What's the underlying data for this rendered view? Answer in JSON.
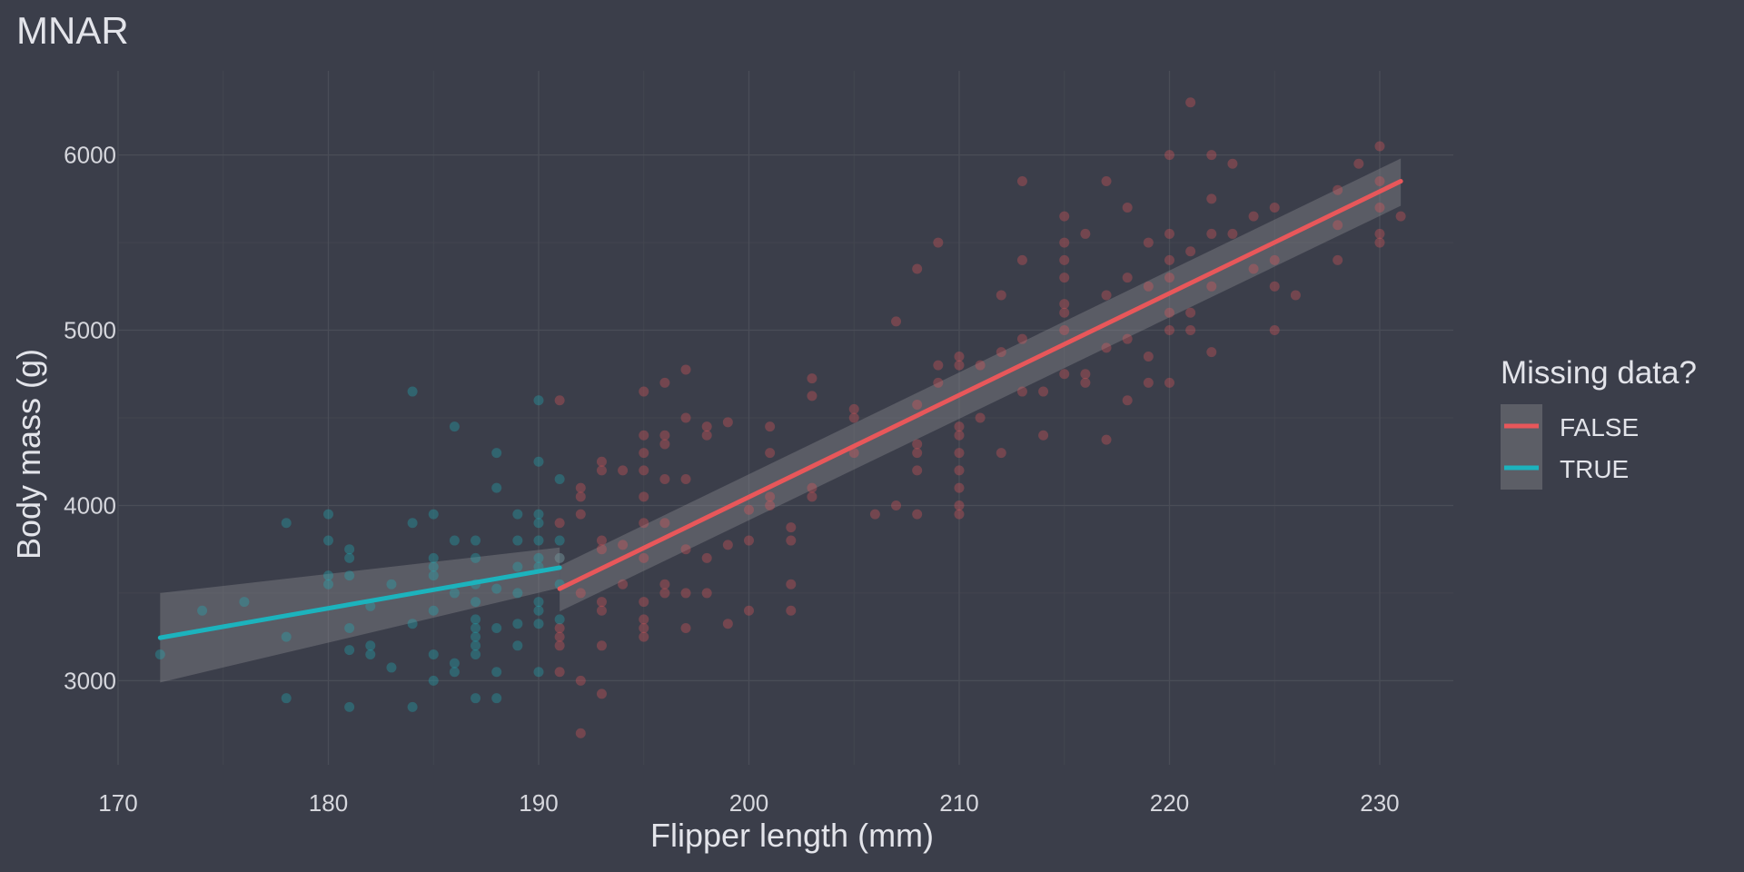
{
  "chart_data": {
    "type": "scatter",
    "title": "MNAR",
    "xlabel": "Flipper length (mm)",
    "ylabel": "Body mass (g)",
    "xlim": [
      170,
      233.5
    ],
    "ylim": [
      2520,
      6480
    ],
    "xticks": [
      170,
      180,
      190,
      200,
      210,
      220,
      230
    ],
    "yticks": [
      3000,
      4000,
      5000,
      6000
    ],
    "grid": true,
    "legend": {
      "title": "Missing data?",
      "position": "right"
    },
    "series": [
      {
        "name": "FALSE",
        "color": "#e8575a",
        "points": [
          [
            191,
            4600
          ],
          [
            191,
            3900
          ],
          [
            191,
            3700
          ],
          [
            191,
            3250
          ],
          [
            191,
            3300
          ],
          [
            191,
            3050
          ],
          [
            191,
            3200
          ],
          [
            192,
            2700
          ],
          [
            192,
            4100
          ],
          [
            192,
            4050
          ],
          [
            192,
            3950
          ],
          [
            192,
            3500
          ],
          [
            192,
            3000
          ],
          [
            193,
            4250
          ],
          [
            193,
            4200
          ],
          [
            193,
            3800
          ],
          [
            193,
            3750
          ],
          [
            193,
            3450
          ],
          [
            193,
            3400
          ],
          [
            193,
            3200
          ],
          [
            193,
            2925
          ],
          [
            194,
            4200
          ],
          [
            194,
            3775
          ],
          [
            194,
            3550
          ],
          [
            195,
            4650
          ],
          [
            195,
            4400
          ],
          [
            195,
            4300
          ],
          [
            195,
            4200
          ],
          [
            195,
            4050
          ],
          [
            195,
            3900
          ],
          [
            195,
            3700
          ],
          [
            195,
            3450
          ],
          [
            195,
            3350
          ],
          [
            195,
            3300
          ],
          [
            195,
            3250
          ],
          [
            196,
            4700
          ],
          [
            196,
            4400
          ],
          [
            196,
            4350
          ],
          [
            196,
            4150
          ],
          [
            196,
            3900
          ],
          [
            196,
            3550
          ],
          [
            196,
            3500
          ],
          [
            197,
            4775
          ],
          [
            197,
            4500
          ],
          [
            197,
            4150
          ],
          [
            197,
            3750
          ],
          [
            197,
            3500
          ],
          [
            197,
            3300
          ],
          [
            198,
            4450
          ],
          [
            198,
            4400
          ],
          [
            198,
            3700
          ],
          [
            198,
            3500
          ],
          [
            199,
            4475
          ],
          [
            199,
            3775
          ],
          [
            199,
            3325
          ],
          [
            200,
            3975
          ],
          [
            200,
            3800
          ],
          [
            200,
            3400
          ],
          [
            201,
            4450
          ],
          [
            201,
            4300
          ],
          [
            201,
            4050
          ],
          [
            201,
            4000
          ],
          [
            202,
            3875
          ],
          [
            202,
            3800
          ],
          [
            202,
            3550
          ],
          [
            202,
            3400
          ],
          [
            203,
            4725
          ],
          [
            203,
            4625
          ],
          [
            203,
            4100
          ],
          [
            203,
            4050
          ],
          [
            205,
            4550
          ],
          [
            205,
            4500
          ],
          [
            205,
            4300
          ],
          [
            206,
            3950
          ],
          [
            207,
            5050
          ],
          [
            207,
            4000
          ],
          [
            208,
            5350
          ],
          [
            208,
            4575
          ],
          [
            208,
            4350
          ],
          [
            208,
            4300
          ],
          [
            208,
            4200
          ],
          [
            208,
            3950
          ],
          [
            209,
            5500
          ],
          [
            209,
            4800
          ],
          [
            209,
            4700
          ],
          [
            210,
            4850
          ],
          [
            210,
            4800
          ],
          [
            210,
            4450
          ],
          [
            210,
            4400
          ],
          [
            210,
            4300
          ],
          [
            210,
            4200
          ],
          [
            210,
            4100
          ],
          [
            210,
            4000
          ],
          [
            210,
            3950
          ],
          [
            211,
            4800
          ],
          [
            211,
            4500
          ],
          [
            212,
            5200
          ],
          [
            212,
            4875
          ],
          [
            212,
            4300
          ],
          [
            213,
            5850
          ],
          [
            213,
            5400
          ],
          [
            213,
            4950
          ],
          [
            213,
            4650
          ],
          [
            214,
            4650
          ],
          [
            214,
            4400
          ],
          [
            215,
            5650
          ],
          [
            215,
            5500
          ],
          [
            215,
            5400
          ],
          [
            215,
            5300
          ],
          [
            215,
            5150
          ],
          [
            215,
            5100
          ],
          [
            215,
            5000
          ],
          [
            215,
            4750
          ],
          [
            216,
            5550
          ],
          [
            216,
            4750
          ],
          [
            216,
            4700
          ],
          [
            217,
            5850
          ],
          [
            217,
            5200
          ],
          [
            217,
            4900
          ],
          [
            217,
            4375
          ],
          [
            218,
            5700
          ],
          [
            218,
            5300
          ],
          [
            218,
            4950
          ],
          [
            218,
            4600
          ],
          [
            219,
            5500
          ],
          [
            219,
            5250
          ],
          [
            219,
            4850
          ],
          [
            219,
            4700
          ],
          [
            220,
            6000
          ],
          [
            220,
            5550
          ],
          [
            220,
            5400
          ],
          [
            220,
            5300
          ],
          [
            220,
            5100
          ],
          [
            220,
            5000
          ],
          [
            220,
            4700
          ],
          [
            221,
            6300
          ],
          [
            221,
            5450
          ],
          [
            221,
            5100
          ],
          [
            221,
            5000
          ],
          [
            222,
            6000
          ],
          [
            222,
            5750
          ],
          [
            222,
            5550
          ],
          [
            222,
            5250
          ],
          [
            222,
            4875
          ],
          [
            223,
            5950
          ],
          [
            223,
            5550
          ],
          [
            224,
            5650
          ],
          [
            224,
            5350
          ],
          [
            225,
            5700
          ],
          [
            225,
            5400
          ],
          [
            225,
            5250
          ],
          [
            225,
            5000
          ],
          [
            226,
            5200
          ],
          [
            228,
            5800
          ],
          [
            228,
            5600
          ],
          [
            228,
            5400
          ],
          [
            229,
            5950
          ],
          [
            230,
            6050
          ],
          [
            230,
            5850
          ],
          [
            230,
            5700
          ],
          [
            230,
            5550
          ],
          [
            230,
            5500
          ],
          [
            231,
            5650
          ]
        ],
        "fit": {
          "x": [
            191,
            231
          ],
          "y": [
            3525,
            5850
          ],
          "ci_low": [
            3395,
            5710
          ],
          "ci_high": [
            3655,
            5980
          ]
        }
      },
      {
        "name": "TRUE",
        "color": "#1cb3bd",
        "points": [
          [
            172,
            3150
          ],
          [
            174,
            3400
          ],
          [
            176,
            3450
          ],
          [
            178,
            3900
          ],
          [
            178,
            3250
          ],
          [
            178,
            2900
          ],
          [
            180,
            3950
          ],
          [
            180,
            3800
          ],
          [
            180,
            3600
          ],
          [
            180,
            3550
          ],
          [
            181,
            3750
          ],
          [
            181,
            3700
          ],
          [
            181,
            3600
          ],
          [
            181,
            3300
          ],
          [
            181,
            3175
          ],
          [
            181,
            2850
          ],
          [
            182,
            3425
          ],
          [
            182,
            3200
          ],
          [
            182,
            3150
          ],
          [
            183,
            3550
          ],
          [
            183,
            3075
          ],
          [
            184,
            4650
          ],
          [
            184,
            3900
          ],
          [
            184,
            3325
          ],
          [
            184,
            2850
          ],
          [
            185,
            3950
          ],
          [
            185,
            3700
          ],
          [
            185,
            3650
          ],
          [
            185,
            3600
          ],
          [
            185,
            3400
          ],
          [
            185,
            3150
          ],
          [
            185,
            3000
          ],
          [
            186,
            4450
          ],
          [
            186,
            3800
          ],
          [
            186,
            3500
          ],
          [
            186,
            3100
          ],
          [
            186,
            3050
          ],
          [
            187,
            3800
          ],
          [
            187,
            3700
          ],
          [
            187,
            3550
          ],
          [
            187,
            3450
          ],
          [
            187,
            3350
          ],
          [
            187,
            3300
          ],
          [
            187,
            3250
          ],
          [
            187,
            3200
          ],
          [
            187,
            3150
          ],
          [
            187,
            2900
          ],
          [
            188,
            4300
          ],
          [
            188,
            4100
          ],
          [
            188,
            3525
          ],
          [
            188,
            3300
          ],
          [
            188,
            3050
          ],
          [
            188,
            2900
          ],
          [
            189,
            3950
          ],
          [
            189,
            3800
          ],
          [
            189,
            3650
          ],
          [
            189,
            3500
          ],
          [
            189,
            3325
          ],
          [
            189,
            3200
          ],
          [
            190,
            4600
          ],
          [
            190,
            4250
          ],
          [
            190,
            3950
          ],
          [
            190,
            3900
          ],
          [
            190,
            3800
          ],
          [
            190,
            3700
          ],
          [
            190,
            3650
          ],
          [
            190,
            3450
          ],
          [
            190,
            3400
          ],
          [
            190,
            3325
          ],
          [
            190,
            3050
          ],
          [
            191,
            4150
          ],
          [
            191,
            3800
          ],
          [
            191,
            3700
          ],
          [
            191,
            3550
          ],
          [
            191,
            3350
          ]
        ],
        "fit": {
          "x": [
            172,
            191
          ],
          "y": [
            3245,
            3645
          ],
          "ci_low": [
            2990,
            3530
          ],
          "ci_high": [
            3500,
            3760
          ]
        }
      }
    ]
  }
}
